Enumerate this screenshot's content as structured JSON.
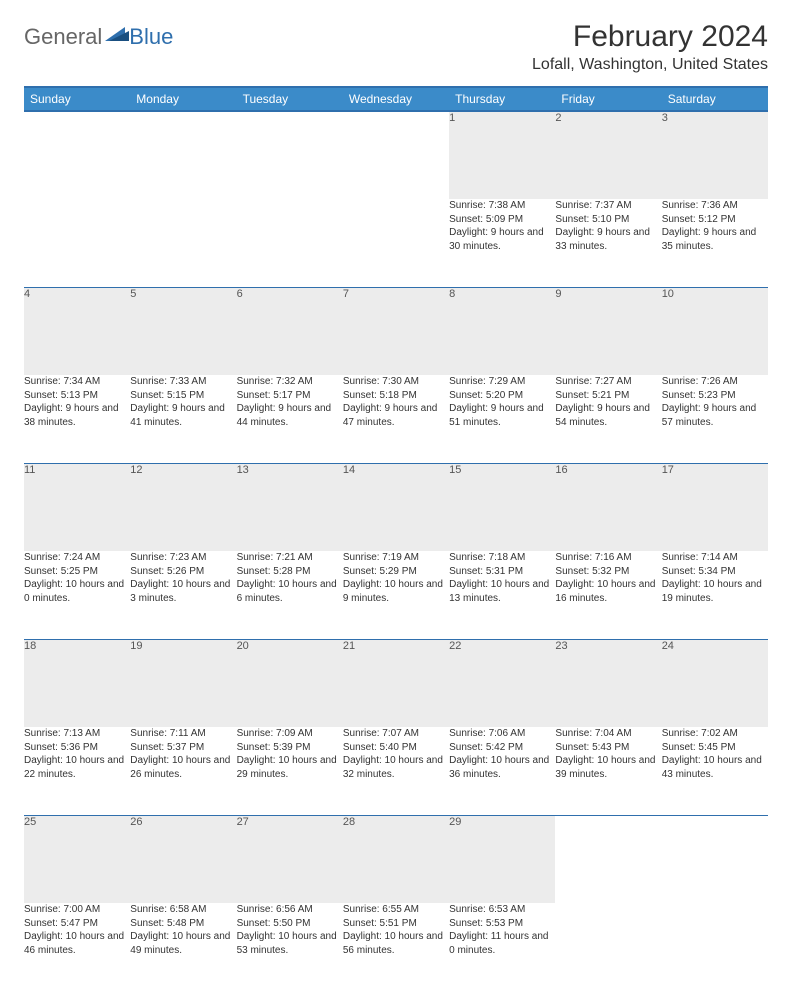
{
  "brand": {
    "part1": "General",
    "part2": "Blue"
  },
  "title": "February 2024",
  "location": "Lofall, Washington, United States",
  "colors": {
    "header_bg": "#3b8bc9",
    "header_border": "#2f6fad",
    "daynum_bg": "#ececec",
    "text": "#333333"
  },
  "dayHeaders": [
    "Sunday",
    "Monday",
    "Tuesday",
    "Wednesday",
    "Thursday",
    "Friday",
    "Saturday"
  ],
  "weeks": [
    [
      null,
      null,
      null,
      null,
      {
        "n": "1",
        "sr": "7:38 AM",
        "ss": "5:09 PM",
        "dl": "9 hours and 30 minutes."
      },
      {
        "n": "2",
        "sr": "7:37 AM",
        "ss": "5:10 PM",
        "dl": "9 hours and 33 minutes."
      },
      {
        "n": "3",
        "sr": "7:36 AM",
        "ss": "5:12 PM",
        "dl": "9 hours and 35 minutes."
      }
    ],
    [
      {
        "n": "4",
        "sr": "7:34 AM",
        "ss": "5:13 PM",
        "dl": "9 hours and 38 minutes."
      },
      {
        "n": "5",
        "sr": "7:33 AM",
        "ss": "5:15 PM",
        "dl": "9 hours and 41 minutes."
      },
      {
        "n": "6",
        "sr": "7:32 AM",
        "ss": "5:17 PM",
        "dl": "9 hours and 44 minutes."
      },
      {
        "n": "7",
        "sr": "7:30 AM",
        "ss": "5:18 PM",
        "dl": "9 hours and 47 minutes."
      },
      {
        "n": "8",
        "sr": "7:29 AM",
        "ss": "5:20 PM",
        "dl": "9 hours and 51 minutes."
      },
      {
        "n": "9",
        "sr": "7:27 AM",
        "ss": "5:21 PM",
        "dl": "9 hours and 54 minutes."
      },
      {
        "n": "10",
        "sr": "7:26 AM",
        "ss": "5:23 PM",
        "dl": "9 hours and 57 minutes."
      }
    ],
    [
      {
        "n": "11",
        "sr": "7:24 AM",
        "ss": "5:25 PM",
        "dl": "10 hours and 0 minutes."
      },
      {
        "n": "12",
        "sr": "7:23 AM",
        "ss": "5:26 PM",
        "dl": "10 hours and 3 minutes."
      },
      {
        "n": "13",
        "sr": "7:21 AM",
        "ss": "5:28 PM",
        "dl": "10 hours and 6 minutes."
      },
      {
        "n": "14",
        "sr": "7:19 AM",
        "ss": "5:29 PM",
        "dl": "10 hours and 9 minutes."
      },
      {
        "n": "15",
        "sr": "7:18 AM",
        "ss": "5:31 PM",
        "dl": "10 hours and 13 minutes."
      },
      {
        "n": "16",
        "sr": "7:16 AM",
        "ss": "5:32 PM",
        "dl": "10 hours and 16 minutes."
      },
      {
        "n": "17",
        "sr": "7:14 AM",
        "ss": "5:34 PM",
        "dl": "10 hours and 19 minutes."
      }
    ],
    [
      {
        "n": "18",
        "sr": "7:13 AM",
        "ss": "5:36 PM",
        "dl": "10 hours and 22 minutes."
      },
      {
        "n": "19",
        "sr": "7:11 AM",
        "ss": "5:37 PM",
        "dl": "10 hours and 26 minutes."
      },
      {
        "n": "20",
        "sr": "7:09 AM",
        "ss": "5:39 PM",
        "dl": "10 hours and 29 minutes."
      },
      {
        "n": "21",
        "sr": "7:07 AM",
        "ss": "5:40 PM",
        "dl": "10 hours and 32 minutes."
      },
      {
        "n": "22",
        "sr": "7:06 AM",
        "ss": "5:42 PM",
        "dl": "10 hours and 36 minutes."
      },
      {
        "n": "23",
        "sr": "7:04 AM",
        "ss": "5:43 PM",
        "dl": "10 hours and 39 minutes."
      },
      {
        "n": "24",
        "sr": "7:02 AM",
        "ss": "5:45 PM",
        "dl": "10 hours and 43 minutes."
      }
    ],
    [
      {
        "n": "25",
        "sr": "7:00 AM",
        "ss": "5:47 PM",
        "dl": "10 hours and 46 minutes."
      },
      {
        "n": "26",
        "sr": "6:58 AM",
        "ss": "5:48 PM",
        "dl": "10 hours and 49 minutes."
      },
      {
        "n": "27",
        "sr": "6:56 AM",
        "ss": "5:50 PM",
        "dl": "10 hours and 53 minutes."
      },
      {
        "n": "28",
        "sr": "6:55 AM",
        "ss": "5:51 PM",
        "dl": "10 hours and 56 minutes."
      },
      {
        "n": "29",
        "sr": "6:53 AM",
        "ss": "5:53 PM",
        "dl": "11 hours and 0 minutes."
      },
      null,
      null
    ]
  ],
  "labels": {
    "sunrise": "Sunrise: ",
    "sunset": "Sunset: ",
    "daylight": "Daylight: "
  }
}
